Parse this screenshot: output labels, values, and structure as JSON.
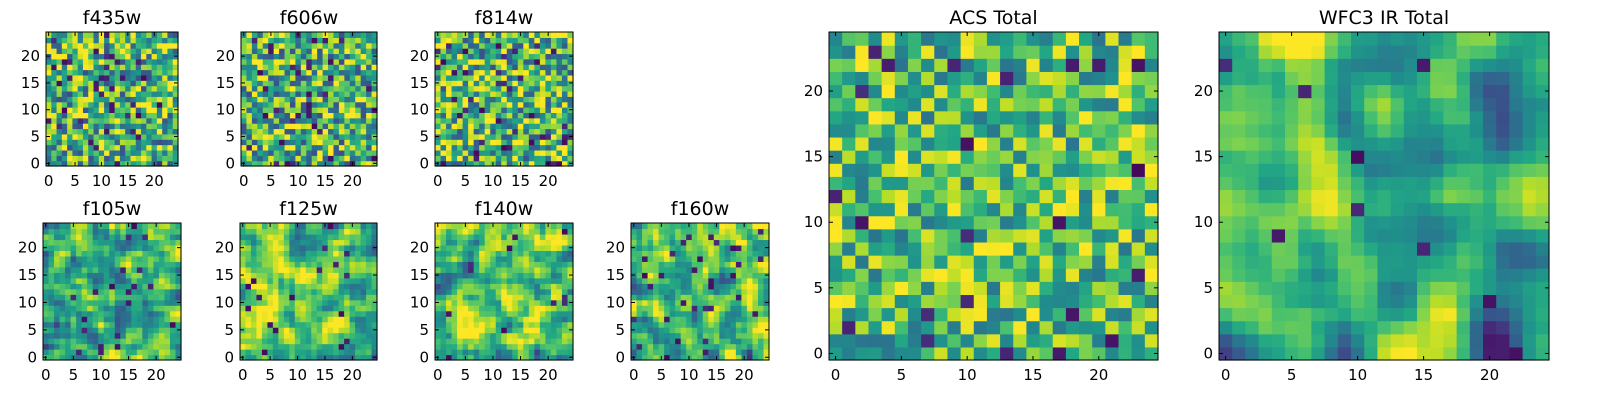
{
  "chart_data": [
    {
      "type": "heatmap",
      "title": "f435w",
      "grid_size": 25,
      "colormap": "viridis",
      "xlim": [
        -0.5,
        24.5
      ],
      "ylim": [
        -0.5,
        24.5
      ],
      "xticks": [
        0,
        5,
        10,
        15,
        20
      ],
      "yticks": [
        0,
        5,
        10,
        15,
        20
      ],
      "seed": 11,
      "smooth": 0,
      "dark_prob": 0.06,
      "mean": 0.66,
      "spread": 0.42
    },
    {
      "type": "heatmap",
      "title": "f606w",
      "grid_size": 25,
      "colormap": "viridis",
      "xlim": [
        -0.5,
        24.5
      ],
      "ylim": [
        -0.5,
        24.5
      ],
      "xticks": [
        0,
        5,
        10,
        15,
        20
      ],
      "yticks": [
        0,
        5,
        10,
        15,
        20
      ],
      "seed": 23,
      "smooth": 0,
      "dark_prob": 0.05,
      "mean": 0.66,
      "spread": 0.42
    },
    {
      "type": "heatmap",
      "title": "f814w",
      "grid_size": 25,
      "colormap": "viridis",
      "xlim": [
        -0.5,
        24.5
      ],
      "ylim": [
        -0.5,
        24.5
      ],
      "xticks": [
        0,
        5,
        10,
        15,
        20
      ],
      "yticks": [
        0,
        5,
        10,
        15,
        20
      ],
      "seed": 37,
      "smooth": 0,
      "dark_prob": 0.05,
      "mean": 0.68,
      "spread": 0.42
    },
    {
      "type": "heatmap",
      "title": "f105w",
      "grid_size": 25,
      "colormap": "viridis",
      "xlim": [
        -0.5,
        24.5
      ],
      "ylim": [
        -0.5,
        24.5
      ],
      "xticks": [
        0,
        5,
        10,
        15,
        20
      ],
      "yticks": [
        0,
        5,
        10,
        15,
        20
      ],
      "seed": 41,
      "smooth": 1,
      "dark_prob": 0.03,
      "mean": 0.68,
      "spread": 0.5
    },
    {
      "type": "heatmap",
      "title": "f125w",
      "grid_size": 25,
      "colormap": "viridis",
      "xlim": [
        -0.5,
        24.5
      ],
      "ylim": [
        -0.5,
        24.5
      ],
      "xticks": [
        0,
        5,
        10,
        15,
        20
      ],
      "yticks": [
        0,
        5,
        10,
        15,
        20
      ],
      "seed": 53,
      "smooth": 1,
      "dark_prob": 0.03,
      "mean": 0.7,
      "spread": 0.5
    },
    {
      "type": "heatmap",
      "title": "f140w",
      "grid_size": 25,
      "colormap": "viridis",
      "xlim": [
        -0.5,
        24.5
      ],
      "ylim": [
        -0.5,
        24.5
      ],
      "xticks": [
        0,
        5,
        10,
        15,
        20
      ],
      "yticks": [
        0,
        5,
        10,
        15,
        20
      ],
      "seed": 67,
      "smooth": 1,
      "dark_prob": 0.02,
      "mean": 0.7,
      "spread": 0.5
    },
    {
      "type": "heatmap",
      "title": "f160w",
      "grid_size": 25,
      "colormap": "viridis",
      "xlim": [
        -0.5,
        24.5
      ],
      "ylim": [
        -0.5,
        24.5
      ],
      "xticks": [
        0,
        5,
        10,
        15,
        20
      ],
      "yticks": [
        0,
        5,
        10,
        15,
        20
      ],
      "seed": 79,
      "smooth": 1,
      "dark_prob": 0.04,
      "mean": 0.66,
      "spread": 0.52
    },
    {
      "type": "heatmap",
      "title": "ACS Total",
      "grid_size": 25,
      "colormap": "viridis",
      "xlim": [
        -0.5,
        24.5
      ],
      "ylim": [
        -0.5,
        24.5
      ],
      "xticks": [
        0,
        5,
        10,
        15,
        20
      ],
      "yticks": [
        0,
        5,
        10,
        15,
        20
      ],
      "seed": 97,
      "smooth": 0,
      "dark_prob": 0.025,
      "mean": 0.7,
      "spread": 0.32
    },
    {
      "type": "heatmap",
      "title": "WFC3 IR Total",
      "grid_size": 25,
      "colormap": "viridis",
      "xlim": [
        -0.5,
        24.5
      ],
      "ylim": [
        -0.5,
        24.5
      ],
      "xticks": [
        0,
        5,
        10,
        15,
        20
      ],
      "yticks": [
        0,
        5,
        10,
        15,
        20
      ],
      "seed": 131,
      "smooth": 2,
      "dark_prob": 0.015,
      "mean": 0.62,
      "spread": 0.55
    }
  ]
}
